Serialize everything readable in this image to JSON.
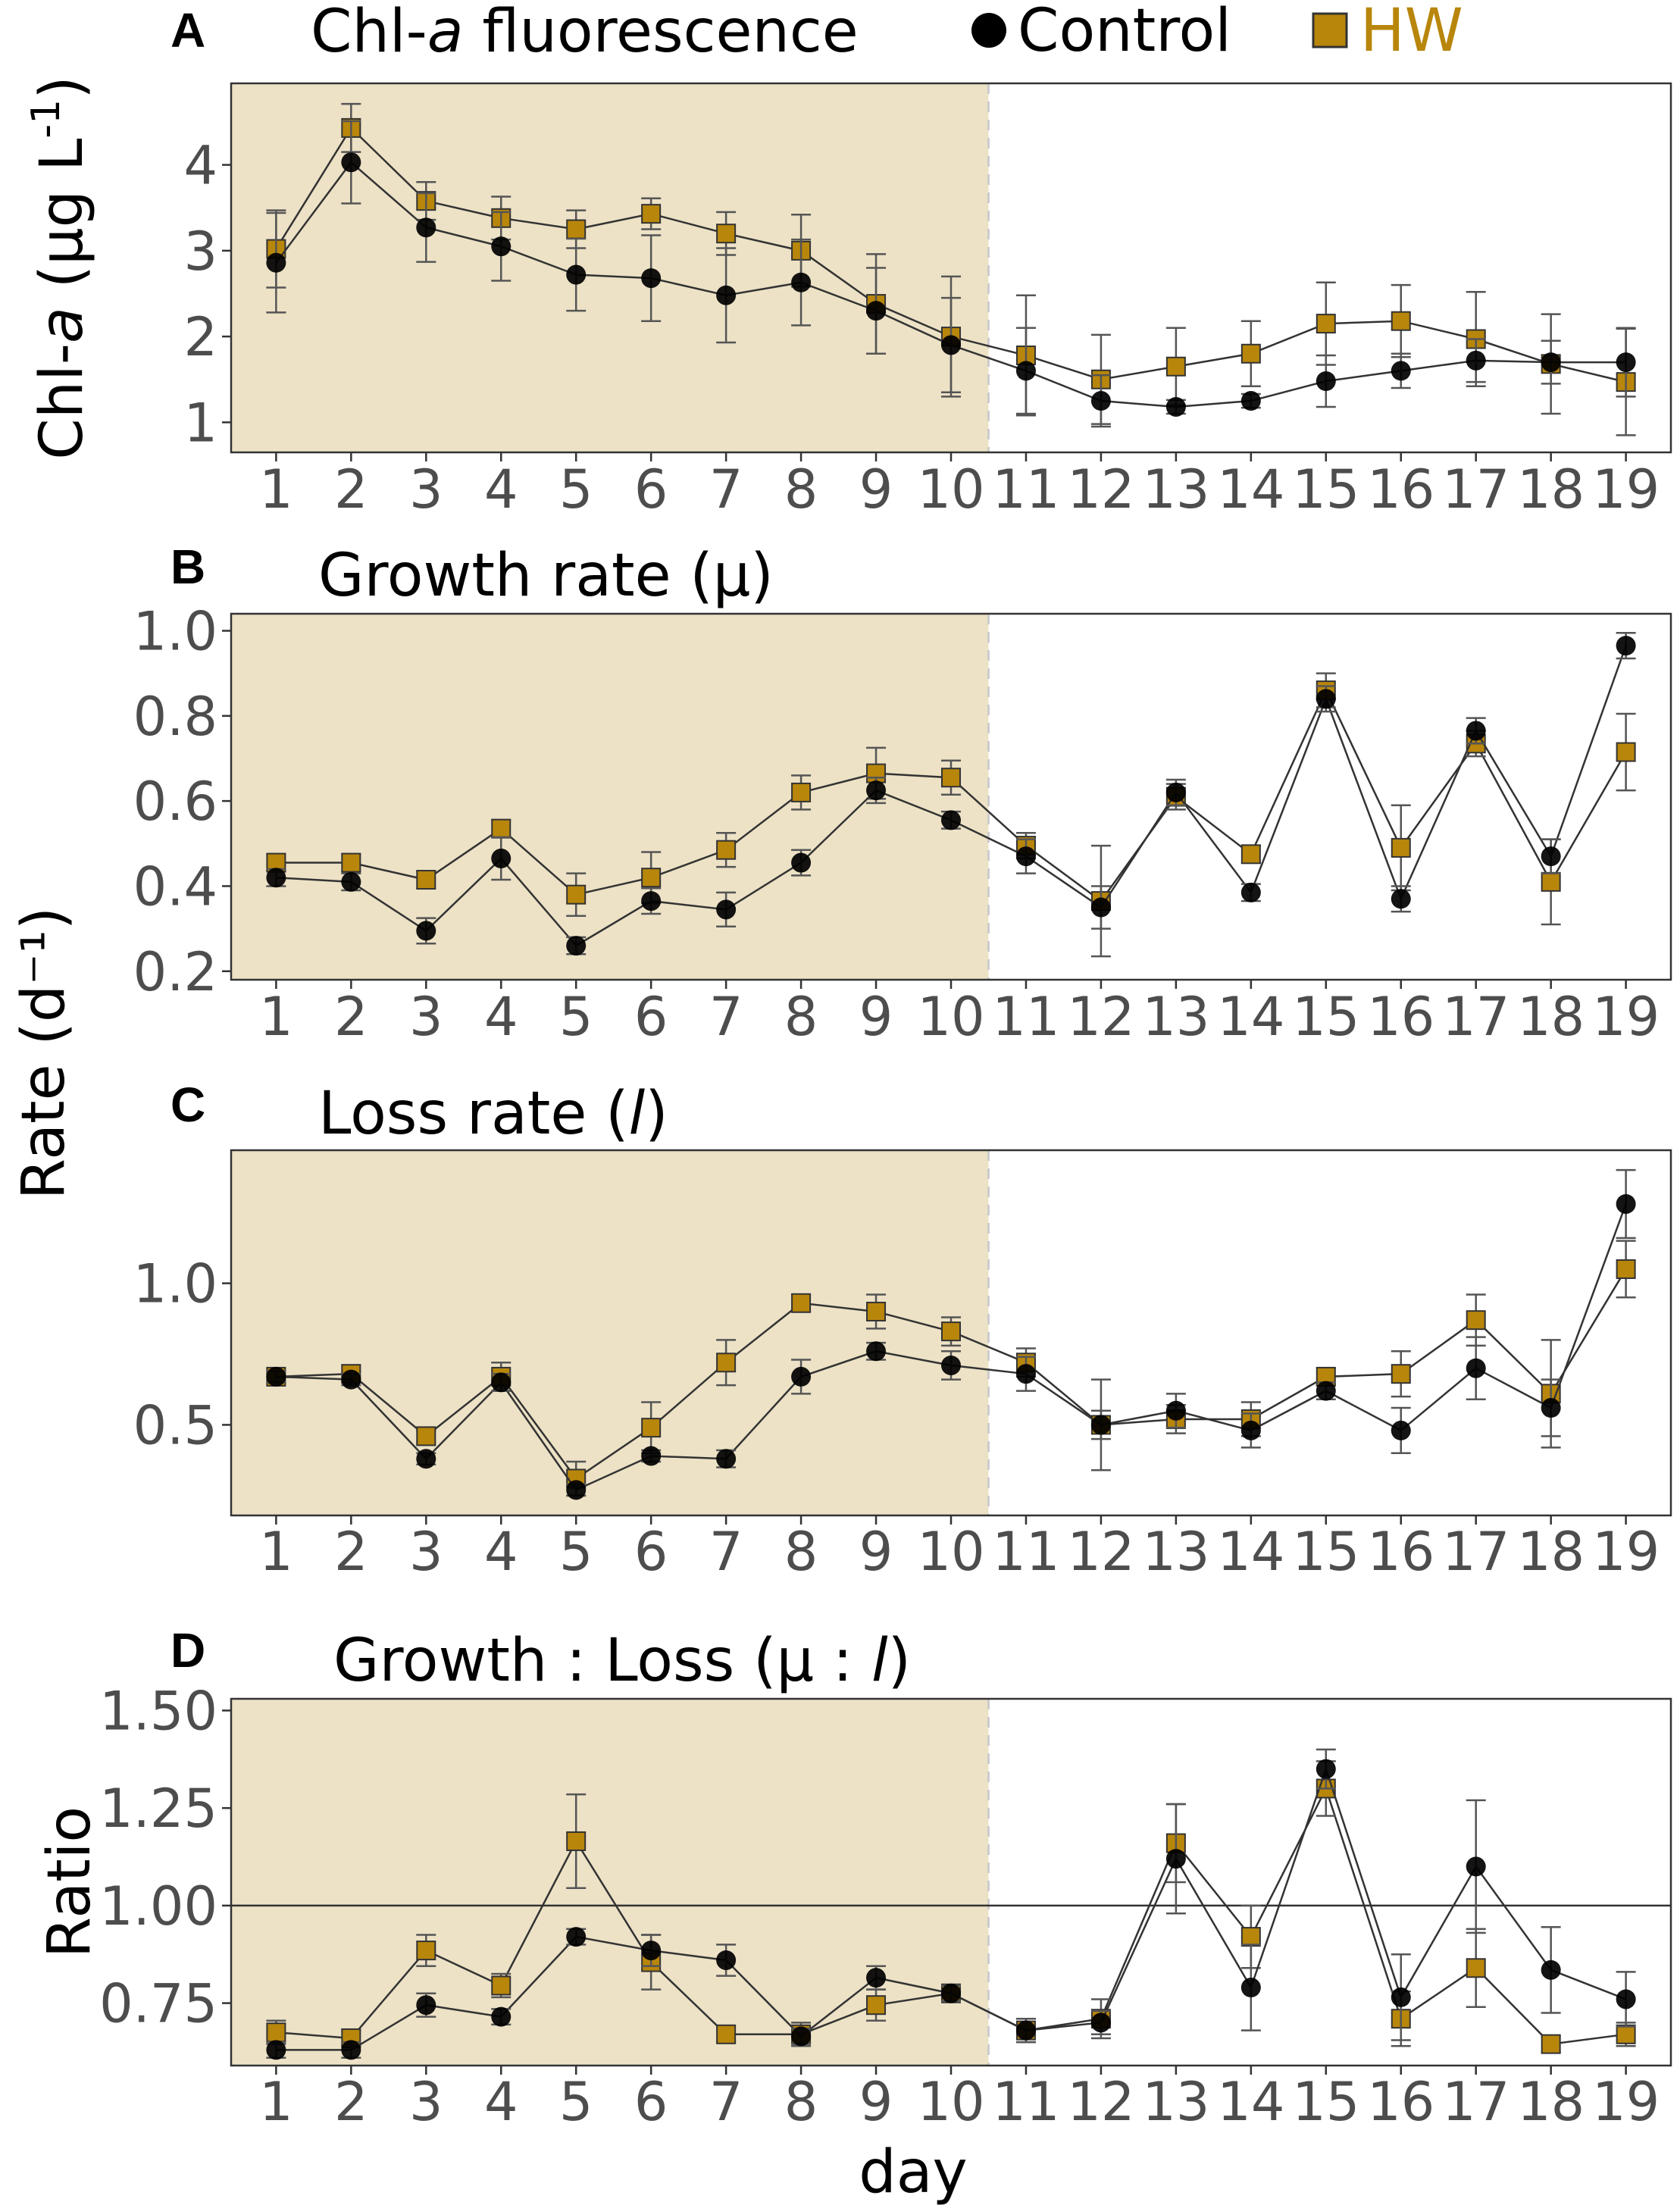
{
  "legend": {
    "control_label": "Control",
    "hw_label": "HW"
  },
  "colors": {
    "hw": "#b8860b",
    "hw_text": "#b8860b",
    "control": "#000000",
    "heatwave_shade": "#ede2c6",
    "line": "#333333",
    "errorbar": "#555555"
  },
  "shared": {
    "y_axis_label_rate": "Rate (d⁻¹)",
    "x_axis_label": "day"
  },
  "chart_data": [
    {
      "type": "line",
      "letter": "A",
      "title": "Chl-a fluorescence",
      "title_parts": [
        "Chl-",
        "a",
        " fluorescence"
      ],
      "ylabel_parts": [
        "Chl-",
        "a",
        " (µg L",
        "-1",
        ")"
      ],
      "ylabel": "Chl-a (µg L-1)",
      "ylim": [
        0.65,
        4.95
      ],
      "yticks": [
        1,
        2,
        3,
        4
      ],
      "yticklabels": [
        "1",
        "2",
        "3",
        "4"
      ],
      "x": [
        1,
        2,
        3,
        4,
        5,
        6,
        7,
        8,
        9,
        10,
        11,
        12,
        13,
        14,
        15,
        16,
        17,
        18,
        19
      ],
      "xticklabels": [
        "1",
        "2",
        "3",
        "4",
        "5",
        "6",
        "7",
        "8",
        "9",
        "10",
        "11",
        "12",
        "13",
        "14",
        "15",
        "16",
        "17",
        "18",
        "19"
      ],
      "heatwave_days": [
        1,
        10
      ],
      "series": [
        {
          "name": "HW",
          "values": [
            3.02,
            4.43,
            3.58,
            3.38,
            3.25,
            3.43,
            3.2,
            3.0,
            2.38,
            2.0,
            1.78,
            1.5,
            1.65,
            1.8,
            2.15,
            2.18,
            1.97,
            1.68,
            1.47
          ],
          "errors": [
            0.45,
            0.28,
            0.22,
            0.25,
            0.22,
            0.18,
            0.25,
            0.42,
            0.58,
            0.7,
            0.7,
            0.52,
            0.45,
            0.38,
            0.48,
            0.42,
            0.55,
            0.58,
            0.62
          ]
        },
        {
          "name": "Control",
          "values": [
            2.86,
            4.03,
            3.27,
            3.05,
            2.72,
            2.68,
            2.48,
            2.63,
            2.3,
            1.9,
            1.6,
            1.25,
            1.18,
            1.25,
            1.48,
            1.6,
            1.72,
            1.7,
            1.7
          ],
          "errors": [
            0.58,
            0.48,
            0.4,
            0.4,
            0.42,
            0.5,
            0.55,
            0.5,
            0.5,
            0.55,
            0.5,
            0.3,
            0.08,
            0.08,
            0.3,
            0.2,
            0.25,
            0.25,
            0.4
          ]
        }
      ]
    },
    {
      "type": "line",
      "letter": "B",
      "title": "Growth rate (µ)",
      "ylim": [
        0.18,
        1.04
      ],
      "yticks": [
        0.2,
        0.4,
        0.6,
        0.8,
        1.0
      ],
      "yticklabels": [
        "0.2",
        "0.4",
        "0.6",
        "0.8",
        "1.0"
      ],
      "x": [
        1,
        2,
        3,
        4,
        5,
        6,
        7,
        8,
        9,
        10,
        11,
        12,
        13,
        14,
        15,
        16,
        17,
        18,
        19
      ],
      "xticklabels": [
        "1",
        "2",
        "3",
        "4",
        "5",
        "6",
        "7",
        "8",
        "9",
        "10",
        "11",
        "12",
        "13",
        "14",
        "15",
        "16",
        "17",
        "18",
        "19"
      ],
      "heatwave_days": [
        1,
        10
      ],
      "series": [
        {
          "name": "HW",
          "values": [
            0.455,
            0.455,
            0.415,
            0.535,
            0.38,
            0.42,
            0.485,
            0.62,
            0.665,
            0.655,
            0.495,
            0.365,
            0.61,
            0.475,
            0.86,
            0.49,
            0.735,
            0.41,
            0.715
          ],
          "errors": [
            0.02,
            0.02,
            0.02,
            0.02,
            0.05,
            0.06,
            0.04,
            0.04,
            0.06,
            0.04,
            0.03,
            0.13,
            0.03,
            0.02,
            0.04,
            0.1,
            0.03,
            0.1,
            0.09
          ]
        },
        {
          "name": "Control",
          "values": [
            0.42,
            0.41,
            0.295,
            0.465,
            0.26,
            0.365,
            0.345,
            0.455,
            0.625,
            0.555,
            0.47,
            0.35,
            0.62,
            0.385,
            0.84,
            0.37,
            0.765,
            0.47,
            0.965
          ],
          "errors": [
            0.02,
            0.02,
            0.03,
            0.05,
            0.02,
            0.03,
            0.04,
            0.03,
            0.03,
            0.02,
            0.04,
            0.05,
            0.03,
            0.02,
            0.03,
            0.03,
            0.03,
            0.04,
            0.03
          ]
        }
      ]
    },
    {
      "type": "line",
      "letter": "C",
      "title": "Loss rate (l)",
      "title_parts": [
        "Loss rate (",
        "l",
        ")"
      ],
      "ylim": [
        0.18,
        1.47
      ],
      "yticks": [
        0.5,
        1.0
      ],
      "yticklabels": [
        "0.5",
        "1.0"
      ],
      "x": [
        1,
        2,
        3,
        4,
        5,
        6,
        7,
        8,
        9,
        10,
        11,
        12,
        13,
        14,
        15,
        16,
        17,
        18,
        19
      ],
      "xticklabels": [
        "1",
        "2",
        "3",
        "4",
        "5",
        "6",
        "7",
        "8",
        "9",
        "10",
        "11",
        "12",
        "13",
        "14",
        "15",
        "16",
        "17",
        "18",
        "19"
      ],
      "heatwave_days": [
        1,
        10
      ],
      "series": [
        {
          "name": "HW",
          "values": [
            0.67,
            0.68,
            0.46,
            0.67,
            0.31,
            0.49,
            0.72,
            0.93,
            0.9,
            0.83,
            0.72,
            0.5,
            0.52,
            0.52,
            0.67,
            0.68,
            0.87,
            0.61,
            1.05
          ],
          "errors": [
            0.02,
            0.03,
            0.02,
            0.05,
            0.06,
            0.09,
            0.08,
            0.03,
            0.06,
            0.05,
            0.05,
            0.16,
            0.05,
            0.06,
            0.03,
            0.08,
            0.09,
            0.19,
            0.1
          ]
        },
        {
          "name": "Control",
          "values": [
            0.67,
            0.66,
            0.38,
            0.65,
            0.27,
            0.39,
            0.38,
            0.67,
            0.76,
            0.71,
            0.68,
            0.5,
            0.55,
            0.48,
            0.62,
            0.48,
            0.7,
            0.56,
            1.28
          ],
          "errors": [
            0.02,
            0.02,
            0.02,
            0.03,
            0.02,
            0.02,
            0.03,
            0.06,
            0.03,
            0.05,
            0.06,
            0.05,
            0.06,
            0.06,
            0.03,
            0.08,
            0.11,
            0.1,
            0.12
          ]
        }
      ]
    },
    {
      "type": "line",
      "letter": "D",
      "title": "Growth : Loss (µ : l)",
      "title_parts": [
        "Growth : Loss (µ : ",
        "l",
        ")"
      ],
      "ylabel": "Ratio",
      "xlabel": "day",
      "ylim": [
        0.59,
        1.53
      ],
      "yticks": [
        0.75,
        1.0,
        1.25,
        1.5
      ],
      "yticklabels": [
        "0.75",
        "1.00",
        "1.25",
        "1.50"
      ],
      "reference_line": 1.0,
      "x": [
        1,
        2,
        3,
        4,
        5,
        6,
        7,
        8,
        9,
        10,
        11,
        12,
        13,
        14,
        15,
        16,
        17,
        18,
        19
      ],
      "xticklabels": [
        "1",
        "2",
        "3",
        "4",
        "5",
        "6",
        "7",
        "8",
        "9",
        "10",
        "11",
        "12",
        "13",
        "14",
        "15",
        "16",
        "17",
        "18",
        "19"
      ],
      "heatwave_days": [
        1,
        10
      ],
      "series": [
        {
          "name": "HW",
          "values": [
            0.675,
            0.66,
            0.885,
            0.795,
            1.165,
            0.855,
            0.67,
            0.67,
            0.745,
            0.775,
            0.68,
            0.71,
            1.16,
            0.92,
            1.3,
            0.71,
            0.84,
            0.645,
            0.67
          ],
          "errors": [
            0.03,
            0.02,
            0.04,
            0.03,
            0.12,
            0.07,
            0.02,
            0.03,
            0.04,
            0.02,
            0.03,
            0.05,
            0.1,
            0.08,
            0.07,
            0.07,
            0.1,
            0.02,
            0.03
          ]
        },
        {
          "name": "Control",
          "values": [
            0.63,
            0.63,
            0.745,
            0.715,
            0.92,
            0.885,
            0.86,
            0.665,
            0.815,
            0.775,
            0.68,
            0.7,
            1.12,
            0.79,
            1.35,
            0.765,
            1.1,
            0.835,
            0.76
          ],
          "errors": [
            0.02,
            0.02,
            0.03,
            0.02,
            0.02,
            0.04,
            0.04,
            0.02,
            0.03,
            0.02,
            0.03,
            0.03,
            0.14,
            0.11,
            0.05,
            0.11,
            0.17,
            0.11,
            0.07
          ]
        }
      ]
    }
  ]
}
